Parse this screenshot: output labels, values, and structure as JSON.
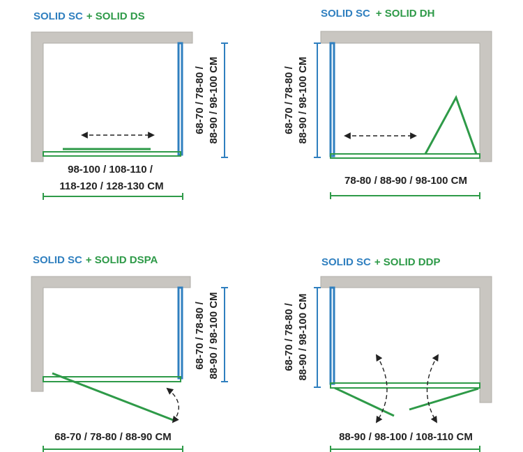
{
  "panels": [
    {
      "title_blue": "SOLID SC",
      "title_green": "+ SOLID DS",
      "width_label": [
        "98-100 / 108-110 /",
        "118-120 / 128-130 CM"
      ],
      "height_label": [
        "68-70 / 78-80 /",
        "88-90 / 98-100 CM"
      ]
    },
    {
      "title_blue": "SOLID SC",
      "title_green": "+ SOLID DH",
      "width_label": [
        "78-80 / 88-90 / 98-100 CM"
      ],
      "height_label": [
        "68-70 / 78-80 /",
        "88-90 / 98-100 CM"
      ]
    },
    {
      "title_blue": "SOLID SC",
      "title_green": "+ SOLID DSPA",
      "width_label": [
        "68-70 / 78-80 / 88-90 CM"
      ],
      "height_label": [
        "68-70 / 78-80 /",
        "88-90 / 98-100 CM"
      ]
    },
    {
      "title_blue": "SOLID SC",
      "title_green": "+ SOLID DDP",
      "width_label": [
        "88-90 / 98-100 / 108-110 CM"
      ],
      "height_label": [
        "68-70 / 78-80 /",
        "88-90 / 98-100 CM"
      ]
    }
  ]
}
